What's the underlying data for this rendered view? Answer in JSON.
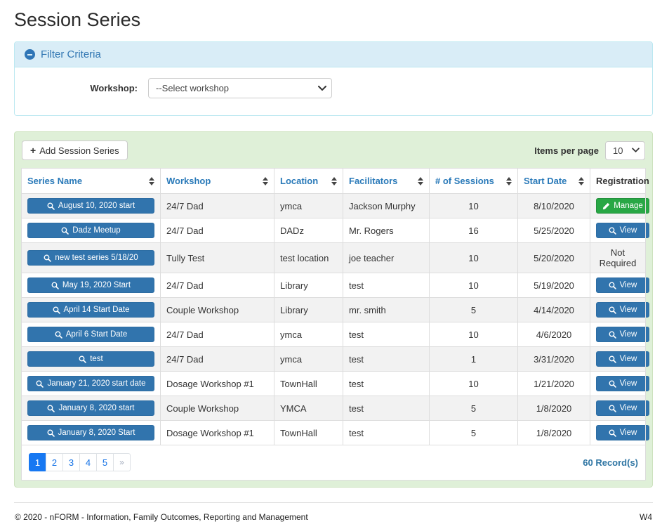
{
  "page": {
    "title": "Session Series"
  },
  "filter": {
    "title": "Filter Criteria",
    "workshop_label": "Workshop:",
    "workshop_selected": "--Select workshop"
  },
  "toolbar": {
    "plus_icon": "+",
    "add_button_label": "Add Session Series",
    "items_per_page_label": "Items per page",
    "items_per_page_value": "10"
  },
  "table": {
    "columns": [
      {
        "label": "Series Name",
        "sortable": true
      },
      {
        "label": "Workshop",
        "sortable": true
      },
      {
        "label": "Location",
        "sortable": true
      },
      {
        "label": "Facilitators",
        "sortable": true
      },
      {
        "label": "# of Sessions",
        "sortable": true
      },
      {
        "label": "Start Date",
        "sortable": true
      },
      {
        "label": "Registration",
        "sortable": false
      }
    ],
    "rows": [
      {
        "series_name": "August 10, 2020 start",
        "workshop": "24/7 Dad",
        "location": "ymca",
        "facilitators": "Jackson Murphy",
        "sessions": "10",
        "start_date": "8/10/2020",
        "registration": {
          "type": "manage",
          "label": "Manage"
        }
      },
      {
        "series_name": "Dadz Meetup",
        "workshop": "24/7 Dad",
        "location": "DADz",
        "facilitators": "Mr. Rogers",
        "sessions": "16",
        "start_date": "5/25/2020",
        "registration": {
          "type": "view",
          "label": "View"
        }
      },
      {
        "series_name": "new test series 5/18/20",
        "workshop": "Tully Test",
        "location": "test location",
        "facilitators": "joe teacher",
        "sessions": "10",
        "start_date": "5/20/2020",
        "registration": {
          "type": "text",
          "label": "Not Required"
        }
      },
      {
        "series_name": "May 19, 2020 Start",
        "workshop": "24/7 Dad",
        "location": "Library",
        "facilitators": "test",
        "sessions": "10",
        "start_date": "5/19/2020",
        "registration": {
          "type": "view",
          "label": "View"
        }
      },
      {
        "series_name": "April 14 Start Date",
        "workshop": "Couple Workshop",
        "location": "Library",
        "facilitators": "mr. smith",
        "sessions": "5",
        "start_date": "4/14/2020",
        "registration": {
          "type": "view",
          "label": "View"
        }
      },
      {
        "series_name": "April 6 Start Date",
        "workshop": "24/7 Dad",
        "location": "ymca",
        "facilitators": "test",
        "sessions": "10",
        "start_date": "4/6/2020",
        "registration": {
          "type": "view",
          "label": "View"
        }
      },
      {
        "series_name": "test",
        "workshop": "24/7 Dad",
        "location": "ymca",
        "facilitators": "test",
        "sessions": "1",
        "start_date": "3/31/2020",
        "registration": {
          "type": "view",
          "label": "View"
        }
      },
      {
        "series_name": "January 21, 2020 start date",
        "workshop": "Dosage Workshop #1",
        "location": "TownHall",
        "facilitators": "test",
        "sessions": "10",
        "start_date": "1/21/2020",
        "registration": {
          "type": "view",
          "label": "View"
        }
      },
      {
        "series_name": "January 8, 2020 start",
        "workshop": "Couple Workshop",
        "location": "YMCA",
        "facilitators": "test",
        "sessions": "5",
        "start_date": "1/8/2020",
        "registration": {
          "type": "view",
          "label": "View"
        }
      },
      {
        "series_name": "January 8, 2020 Start",
        "workshop": "Dosage Workshop #1",
        "location": "TownHall",
        "facilitators": "test",
        "sessions": "5",
        "start_date": "1/8/2020",
        "registration": {
          "type": "view",
          "label": "View"
        }
      }
    ]
  },
  "pagination": {
    "pages": [
      "1",
      "2",
      "3",
      "4",
      "5"
    ],
    "active_page": "1",
    "next_label": "»",
    "record_count": "60 Record(s)"
  },
  "colors": {
    "accent_blue": "#3174ad",
    "accent_green": "#28a745",
    "header_text_blue": "#2a7ab9",
    "filter_header_bg": "#d9edf7",
    "panel_green_bg": "#dff0d8",
    "pagination_active": "#1778f2",
    "row_stripe": "#f2f2f2"
  },
  "footer": {
    "copyright": "© 2020 - nFORM - Information, Family Outcomes, Reporting and Management",
    "version": "W4"
  }
}
